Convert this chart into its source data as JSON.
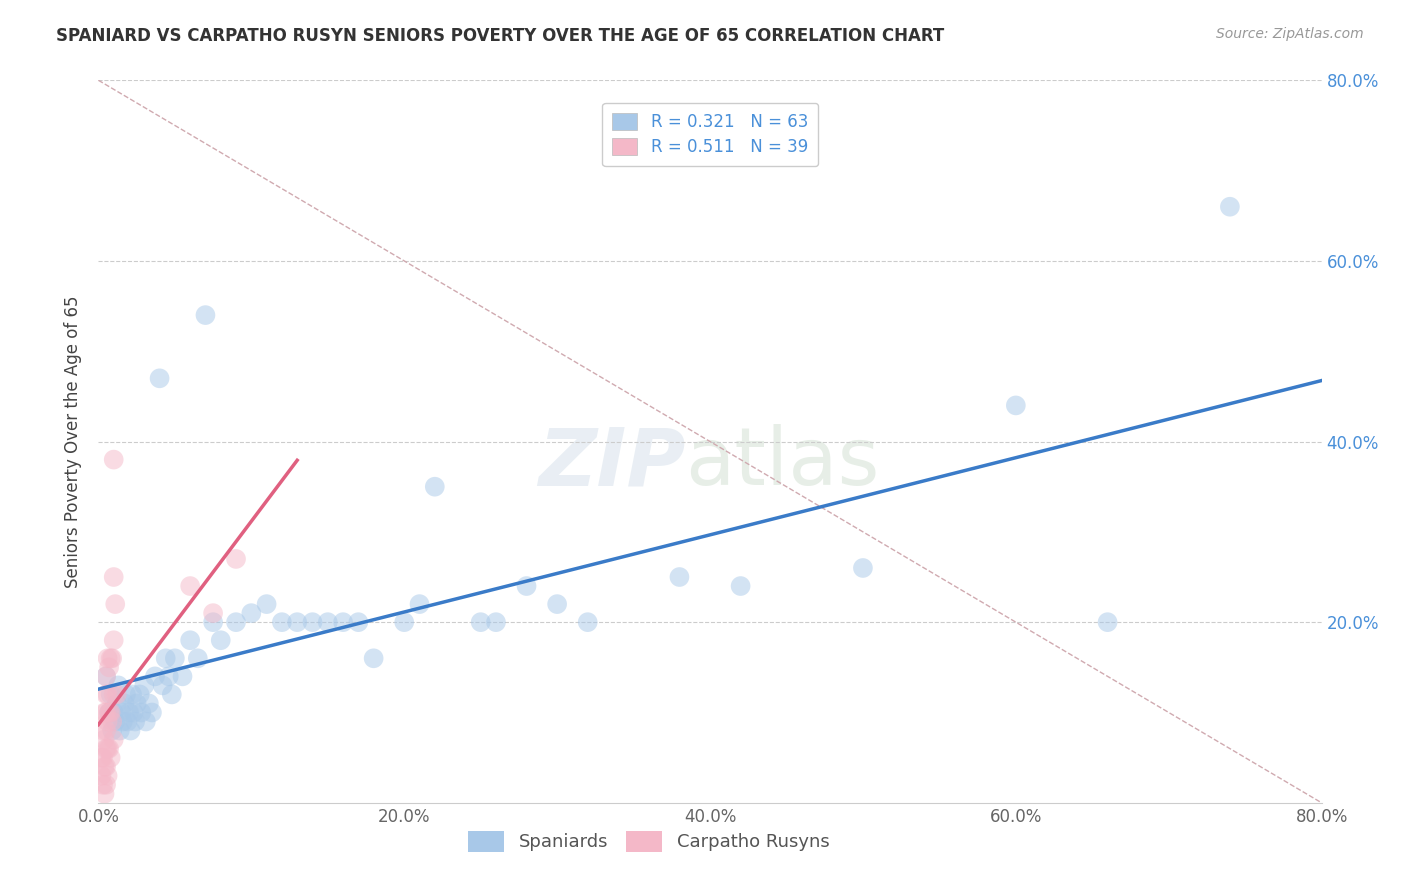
{
  "title": "SPANIARD VS CARPATHO RUSYN SENIORS POVERTY OVER THE AGE OF 65 CORRELATION CHART",
  "source": "Source: ZipAtlas.com",
  "ylabel": "Seniors Poverty Over the Age of 65",
  "xlim": [
    0.0,
    0.8
  ],
  "ylim": [
    0.0,
    0.8
  ],
  "xtick_labels": [
    "0.0%",
    "20.0%",
    "40.0%",
    "60.0%",
    "80.0%"
  ],
  "xtick_vals": [
    0.0,
    0.2,
    0.4,
    0.6,
    0.8
  ],
  "ytick_labels": [
    "20.0%",
    "40.0%",
    "60.0%",
    "80.0%"
  ],
  "ytick_vals": [
    0.2,
    0.4,
    0.6,
    0.8
  ],
  "spaniard_color": "#a8c8e8",
  "rusyn_color": "#f4b8c8",
  "spaniard_line_color": "#3a7bc8",
  "rusyn_line_color": "#e06080",
  "R_spaniard": 0.321,
  "N_spaniard": 63,
  "R_rusyn": 0.511,
  "N_rusyn": 39,
  "spaniard_x": [
    0.005,
    0.007,
    0.008,
    0.009,
    0.01,
    0.011,
    0.012,
    0.013,
    0.014,
    0.015,
    0.016,
    0.017,
    0.018,
    0.019,
    0.02,
    0.021,
    0.022,
    0.023,
    0.024,
    0.025,
    0.027,
    0.028,
    0.03,
    0.031,
    0.033,
    0.035,
    0.037,
    0.04,
    0.042,
    0.044,
    0.046,
    0.048,
    0.05,
    0.055,
    0.06,
    0.065,
    0.07,
    0.075,
    0.08,
    0.09,
    0.1,
    0.11,
    0.12,
    0.13,
    0.14,
    0.15,
    0.16,
    0.17,
    0.18,
    0.2,
    0.21,
    0.22,
    0.25,
    0.26,
    0.28,
    0.3,
    0.32,
    0.38,
    0.42,
    0.5,
    0.6,
    0.66,
    0.74
  ],
  "spaniard_y": [
    0.14,
    0.1,
    0.12,
    0.08,
    0.1,
    0.09,
    0.11,
    0.13,
    0.08,
    0.1,
    0.09,
    0.11,
    0.12,
    0.09,
    0.1,
    0.08,
    0.12,
    0.1,
    0.09,
    0.11,
    0.12,
    0.1,
    0.13,
    0.09,
    0.11,
    0.1,
    0.14,
    0.47,
    0.13,
    0.16,
    0.14,
    0.12,
    0.16,
    0.14,
    0.18,
    0.16,
    0.54,
    0.2,
    0.18,
    0.2,
    0.21,
    0.22,
    0.2,
    0.2,
    0.2,
    0.2,
    0.2,
    0.2,
    0.16,
    0.2,
    0.22,
    0.35,
    0.2,
    0.2,
    0.24,
    0.22,
    0.2,
    0.25,
    0.24,
    0.26,
    0.44,
    0.2,
    0.66
  ],
  "rusyn_x": [
    0.002,
    0.002,
    0.003,
    0.003,
    0.003,
    0.004,
    0.004,
    0.004,
    0.004,
    0.005,
    0.005,
    0.005,
    0.005,
    0.005,
    0.005,
    0.005,
    0.006,
    0.006,
    0.006,
    0.006,
    0.006,
    0.007,
    0.007,
    0.007,
    0.008,
    0.008,
    0.008,
    0.009,
    0.009,
    0.01,
    0.01,
    0.01,
    0.01,
    0.01,
    0.011,
    0.012,
    0.06,
    0.075,
    0.09
  ],
  "rusyn_y": [
    0.05,
    0.03,
    0.08,
    0.05,
    0.02,
    0.1,
    0.07,
    0.04,
    0.01,
    0.14,
    0.12,
    0.1,
    0.08,
    0.06,
    0.04,
    0.02,
    0.16,
    0.12,
    0.09,
    0.06,
    0.03,
    0.15,
    0.1,
    0.06,
    0.16,
    0.1,
    0.05,
    0.16,
    0.09,
    0.38,
    0.25,
    0.18,
    0.12,
    0.07,
    0.22,
    0.12,
    0.24,
    0.21,
    0.27
  ]
}
